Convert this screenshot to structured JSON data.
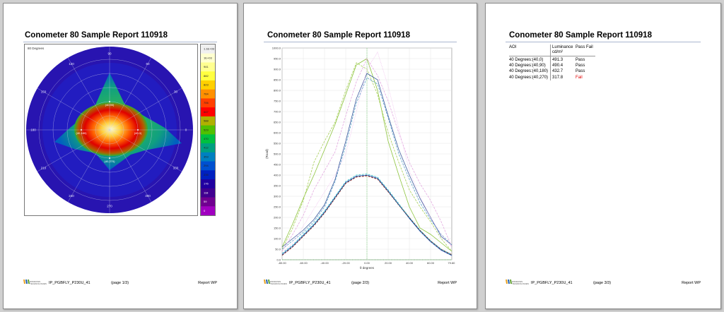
{
  "pages": [
    {
      "title": "Conometer 80 Sample Report 110918",
      "figure_caption": "80 Degrees",
      "polar": {
        "angle_labels": [
          "0",
          "30",
          "60",
          "90",
          "120",
          "150",
          "180",
          "210",
          "240",
          "270",
          "300",
          "330"
        ],
        "markers": [
          "(40,90)",
          "(40,180)",
          "(40,0)",
          "(40,270)"
        ]
      },
      "colorbar": {
        "labels": [
          "1.1E+03",
          "1E+03",
          "941",
          "882",
          "823",
          "764",
          "706",
          "647",
          "588",
          "529",
          "470",
          "412",
          "353",
          "294",
          "235",
          "176",
          "118",
          "59",
          "0"
        ],
        "colors": [
          "#f0f0f0",
          "#ffffd0",
          "#ffff90",
          "#ffff40",
          "#ffd000",
          "#ff9000",
          "#ff4000",
          "#ff0000",
          "#b0b000",
          "#50c000",
          "#00c040",
          "#00a080",
          "#0080c0",
          "#0050d0",
          "#0020c0",
          "#2000a0",
          "#400090",
          "#700090",
          "#a000c0"
        ]
      },
      "footer": {
        "file": "IP_PGBFLY_P230U_41",
        "page": "(page 1/3)",
        "report": "Report WP",
        "logo_text": [
          "WINDOWS",
          "TECHNOLOGIES"
        ]
      }
    },
    {
      "title": "Conometer 80 Sample Report 110918",
      "footer": {
        "file": "IP_PGBFLY_P230U_41",
        "page": "(page 2/3)",
        "report": "Report WP",
        "logo_text": [
          "WINDOWS",
          "TECHNOLOGIES"
        ]
      }
    },
    {
      "title": "Conometer 80 Sample Report 110918",
      "table": {
        "headers": [
          "AOI",
          "Luminance cd/m²",
          "Pass Fail"
        ],
        "rows": [
          {
            "aoi": "40 Degrees:(40,0)",
            "luminance": "491.3",
            "result": "Pass"
          },
          {
            "aoi": "40 Degrees:(40,90)",
            "luminance": "490.4",
            "result": "Pass"
          },
          {
            "aoi": "40 Degrees:(40,180)",
            "luminance": "432.7",
            "result": "Pass"
          },
          {
            "aoi": "40 Degrees:(40,270)",
            "luminance": "317.8",
            "result": "Fail"
          }
        ]
      },
      "footer": {
        "file": "IP_PGBFLY_P230U_41",
        "page": "(page 3/3)",
        "report": "Report WP",
        "logo_text": [
          "WINDOWS",
          "TECHNOLOGIES"
        ]
      }
    }
  ],
  "chart_data": {
    "type": "line",
    "title": "",
    "xlabel": "θ degrees",
    "ylabel": "(Road)",
    "xlim": [
      -80,
      80
    ],
    "ylim": [
      0,
      1000
    ],
    "x_ticks": [
      "-80.00",
      "-60.00",
      "-40.00",
      "-20.00",
      "0.00",
      "20.00",
      "40.00",
      "60.00",
      "79.60"
    ],
    "y_ticks": [
      "0.0",
      "50.0",
      "100.0",
      "150.0",
      "200.0",
      "250.0",
      "300.0",
      "350.0",
      "400.0",
      "450.0",
      "500.0",
      "550.0",
      "600.0",
      "650.0",
      "700.0",
      "750.0",
      "800.0",
      "850.0",
      "900.0",
      "950.0",
      "1000.0"
    ],
    "grid": true,
    "x": [
      -80,
      -70,
      -60,
      -50,
      -40,
      -30,
      -20,
      -10,
      0,
      10,
      20,
      30,
      40,
      50,
      60,
      70,
      80
    ],
    "series": [
      {
        "color": "#8cc43c",
        "style": "solid",
        "values": [
          60,
          170,
          290,
          400,
          520,
          640,
          780,
          920,
          950,
          800,
          560,
          400,
          250,
          150,
          120,
          80,
          40
        ]
      },
      {
        "color": "#a8cf5a",
        "style": "dashed",
        "values": [
          50,
          150,
          280,
          460,
          560,
          650,
          800,
          930,
          900,
          780,
          600,
          460,
          330,
          250,
          180,
          100,
          40
        ]
      },
      {
        "color": "#3d5a9e",
        "style": "solid",
        "values": [
          60,
          100,
          140,
          190,
          260,
          380,
          560,
          760,
          880,
          850,
          680,
          520,
          400,
          290,
          200,
          110,
          70
        ]
      },
      {
        "color": "#5aa0c8",
        "style": "dashed",
        "values": [
          50,
          90,
          130,
          180,
          250,
          370,
          540,
          740,
          860,
          830,
          670,
          500,
          380,
          270,
          190,
          120,
          70
        ]
      },
      {
        "color": "#e3a8e0",
        "style": "dashed",
        "values": [
          40,
          120,
          210,
          330,
          420,
          510,
          680,
          840,
          950,
          870,
          750,
          600,
          460,
          360,
          280,
          180,
          60
        ]
      },
      {
        "color": "#f0c0ee",
        "style": "dotted",
        "values": [
          30,
          80,
          160,
          240,
          320,
          400,
          500,
          700,
          900,
          980,
          820,
          620,
          420,
          300,
          200,
          120,
          60
        ]
      },
      {
        "color": "#e06060",
        "style": "dashed",
        "values": [
          20,
          60,
          110,
          160,
          220,
          290,
          360,
          390,
          395,
          380,
          320,
          260,
          200,
          140,
          90,
          50,
          25
        ]
      },
      {
        "color": "#2050c0",
        "style": "solid",
        "values": [
          25,
          65,
          115,
          165,
          225,
          295,
          365,
          395,
          400,
          385,
          325,
          260,
          195,
          135,
          85,
          45,
          20
        ]
      },
      {
        "color": "#30c0c0",
        "style": "dashed",
        "values": [
          30,
          70,
          120,
          170,
          230,
          300,
          370,
          400,
          405,
          390,
          330,
          265,
          200,
          140,
          90,
          50,
          25
        ]
      },
      {
        "color": "#3a3a3a",
        "style": "dashed",
        "values": [
          22,
          62,
          112,
          162,
          222,
          292,
          362,
          392,
          398,
          382,
          322,
          258,
          198,
          138,
          88,
          48,
          22
        ]
      },
      {
        "color": "#30a030",
        "style": "dotted",
        "values": [
          0,
          0,
          0,
          0,
          0,
          0,
          0,
          0,
          0,
          0,
          0,
          0,
          0,
          0,
          0,
          0,
          0
        ]
      }
    ]
  }
}
